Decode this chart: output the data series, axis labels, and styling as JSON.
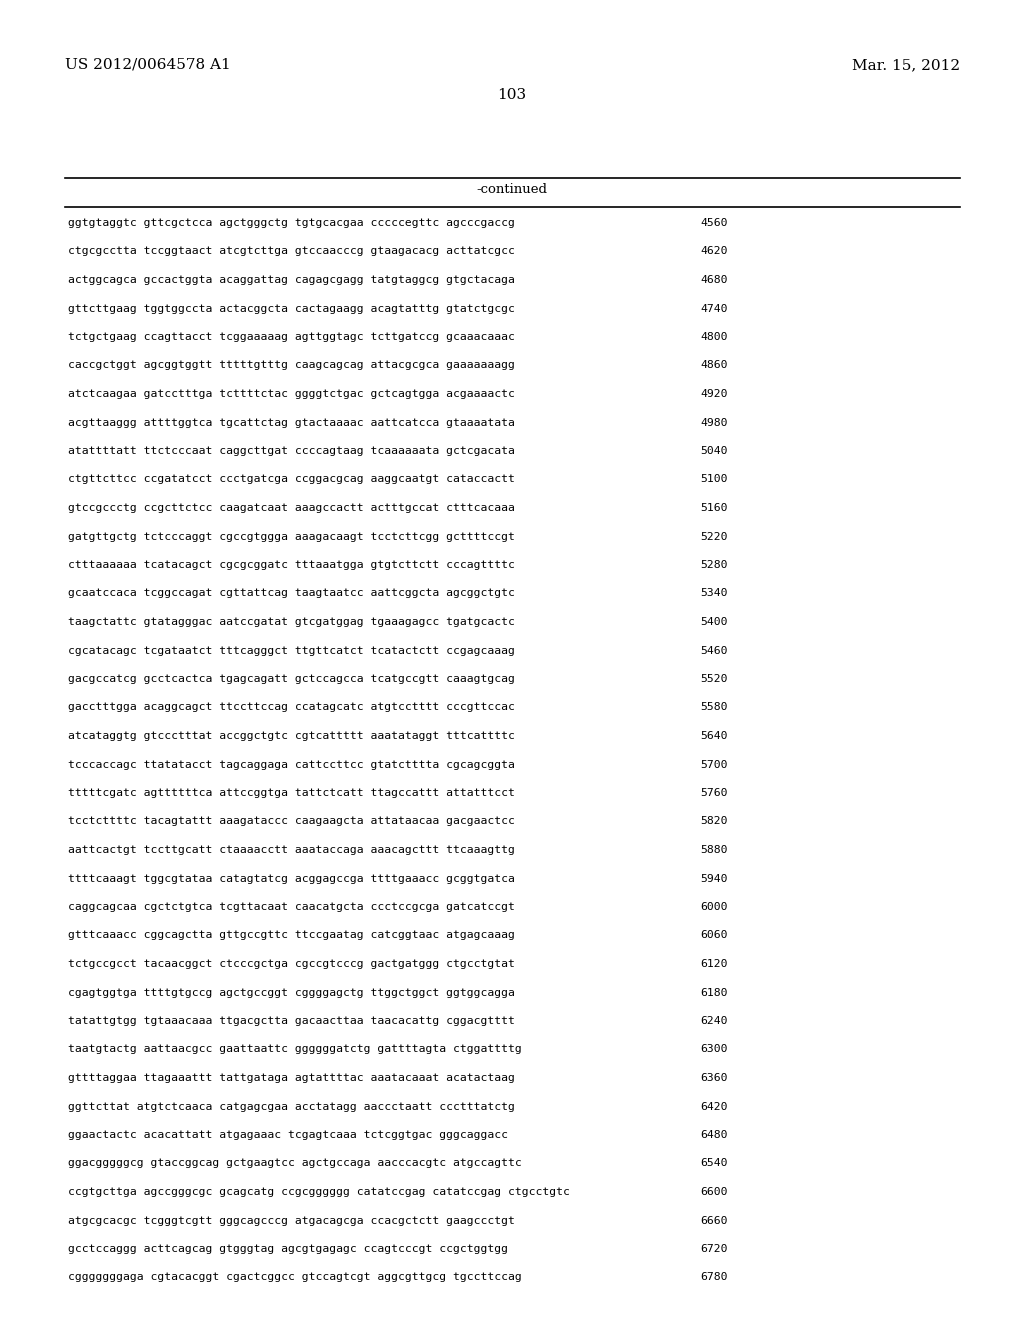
{
  "header_left": "US 2012/0064578 A1",
  "header_right": "Mar. 15, 2012",
  "page_number": "103",
  "continued_label": "-continued",
  "background_color": "#ffffff",
  "text_color": "#000000",
  "rows": [
    [
      "ggtgtaggtc gttcgctcca agctgggctg tgtgcacgaa cccccegttc agcccgaccg",
      "4560"
    ],
    [
      "ctgcgcctta tccggtaact atcgtcttga gtccaacccg gtaagacacg acttatcgcc",
      "4620"
    ],
    [
      "actggcagca gccactggta acaggattag cagagcgagg tatgtaggcg gtgctacaga",
      "4680"
    ],
    [
      "gttcttgaag tggtggccta actacggcta cactagaagg acagtatttg gtatctgcgc",
      "4740"
    ],
    [
      "tctgctgaag ccagttacct tcggaaaaag agttggtagc tcttgatccg gcaaacaaac",
      "4800"
    ],
    [
      "caccgctggt agcggtggtt tttttgtttg caagcagcag attacgcgca gaaaaaaagg",
      "4860"
    ],
    [
      "atctcaagaa gatcctttga tcttttctac ggggtctgac gctcagtgga acgaaaactc",
      "4920"
    ],
    [
      "acgttaaggg attttggtca tgcattctag gtactaaaac aattcatcca gtaaaatata",
      "4980"
    ],
    [
      "atattttatt ttctcccaat caggcttgat ccccagtaag tcaaaaaata gctcgacata",
      "5040"
    ],
    [
      "ctgttcttcc ccgatatcct ccctgatcga ccggacgcag aaggcaatgt cataccactt",
      "5100"
    ],
    [
      "gtccgccctg ccgcttctcc caagatcaat aaagccactt actttgccat ctttcacaaa",
      "5160"
    ],
    [
      "gatgttgctg tctcccaggt cgccgtggga aaagacaagt tcctcttcgg gcttttccgt",
      "5220"
    ],
    [
      "ctttaaaaaa tcatacagct cgcgcggatc tttaaatgga gtgtcttctt cccagttttc",
      "5280"
    ],
    [
      "gcaatccaca tcggccagat cgttattcag taagtaatcc aattcggcta agcggctgtc",
      "5340"
    ],
    [
      "taagctattc gtatagggac aatccgatat gtcgatggag tgaaagagcc tgatgcactc",
      "5400"
    ],
    [
      "cgcatacagc tcgataatct tttcagggct ttgttcatct tcatactctt ccgagcaaag",
      "5460"
    ],
    [
      "gacgccatcg gcctcactca tgagcagatt gctccagcca tcatgccgtt caaagtgcag",
      "5520"
    ],
    [
      "gacctttgga acaggcagct ttccttccag ccatagcatc atgtcctttt cccgttccac",
      "5580"
    ],
    [
      "atcataggtg gtccctttat accggctgtc cgtcattttt aaatataggt tttcattttc",
      "5640"
    ],
    [
      "tcccaccagc ttatatacct tagcaggaga cattccttcc gtatctttta cgcagcggta",
      "5700"
    ],
    [
      "tttttcgatc agttttttca attccggtga tattctcatt ttagccattt attatttcct",
      "5760"
    ],
    [
      "tcctcttttc tacagtattt aaagataccc caagaagcta attataacaa gacgaactcc",
      "5820"
    ],
    [
      "aattcactgt tccttgcatt ctaaaacctt aaataccaga aaacagcttt ttcaaagttg",
      "5880"
    ],
    [
      "ttttcaaagt tggcgtataa catagtatcg acggagccga ttttgaaacc gcggtgatca",
      "5940"
    ],
    [
      "caggcagcaa cgctctgtca tcgttacaat caacatgcta ccctccgcga gatcatccgt",
      "6000"
    ],
    [
      "gtttcaaacc cggcagctta gttgccgttc ttccgaatag catcggtaac atgagcaaag",
      "6060"
    ],
    [
      "tctgccgcct tacaacggct ctcccgctga cgccgtcccg gactgatggg ctgcctgtat",
      "6120"
    ],
    [
      "cgagtggtga ttttgtgccg agctgccggt cggggagctg ttggctggct ggtggcagga",
      "6180"
    ],
    [
      "tatattgtgg tgtaaacaaa ttgacgctta gacaacttaa taacacattg cggacgtttt",
      "6240"
    ],
    [
      "taatgtactg aattaacgcc gaattaattc ggggggatctg gattttagta ctggattttg",
      "6300"
    ],
    [
      "gttttaggaa ttagaaattt tattgataga agtattttac aaatacaaat acatactaag",
      "6360"
    ],
    [
      "ggttcttat atgtctcaaca catgagcgaa acctatagg aaccctaatt ccctttatctg",
      "6420"
    ],
    [
      "ggaactactc acacattatt atgagaaac tcgagtcaaa tctcggtgac gggcaggacc",
      "6480"
    ],
    [
      "ggacgggggcg gtaccggcag gctgaagtcc agctgccaga aacccacgtc atgccagttc",
      "6540"
    ],
    [
      "ccgtgcttga agccgggcgc gcagcatg ccgcgggggg catatccgag catatccgag ctgcctgtc",
      "6600"
    ],
    [
      "atgcgcacgc tcgggtcgtt gggcagcccg atgacagcga ccacgctctt gaagccctgt",
      "6660"
    ],
    [
      "gcctccaggg acttcagcag gtgggtag agcgtgagagc ccagtcccgt ccgctggtgg",
      "6720"
    ],
    [
      "cgggggggaga cgtacacggt cgactcggcc gtccagtcgt aggcgttgcg tgccttccag",
      "6780"
    ]
  ]
}
